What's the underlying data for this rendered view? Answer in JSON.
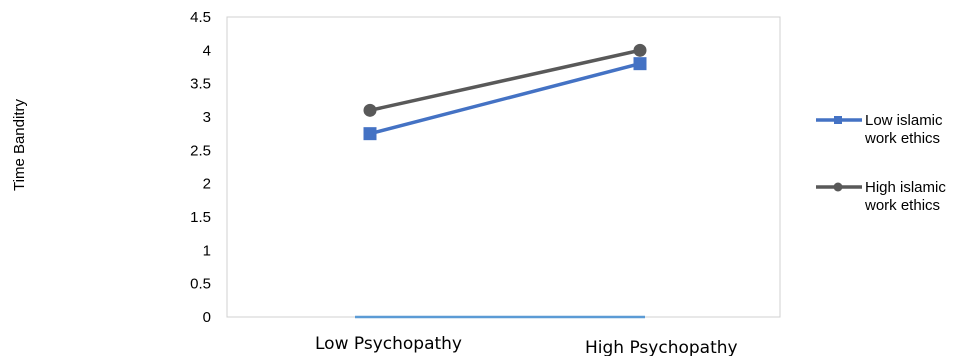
{
  "chart_data": {
    "type": "line",
    "title": "",
    "xlabel": "",
    "ylabel": "Time Banditry",
    "categories": [
      "Low Psychopathy",
      "High  Psychopathy"
    ],
    "ylim": [
      0,
      4.5
    ],
    "yticks": [
      "0",
      "0.5",
      "1",
      "1.5",
      "2",
      "2.5",
      "3",
      "3.5",
      "4",
      "4.5"
    ],
    "grid": false,
    "legend_position": "right",
    "series": [
      {
        "name": "Low islamic work ethics",
        "name_lines": [
          "Low islamic",
          "work ethics"
        ],
        "values": [
          2.75,
          3.8
        ],
        "color": "#4472c4",
        "marker": "square"
      },
      {
        "name": "High islamic work ethics",
        "name_lines": [
          "High islamic",
          "work ethics"
        ],
        "values": [
          3.1,
          4.0
        ],
        "color": "#595959",
        "marker": "circle"
      }
    ],
    "baseline": {
      "values": [
        0,
        0
      ],
      "color": "#5b9bd5"
    }
  }
}
